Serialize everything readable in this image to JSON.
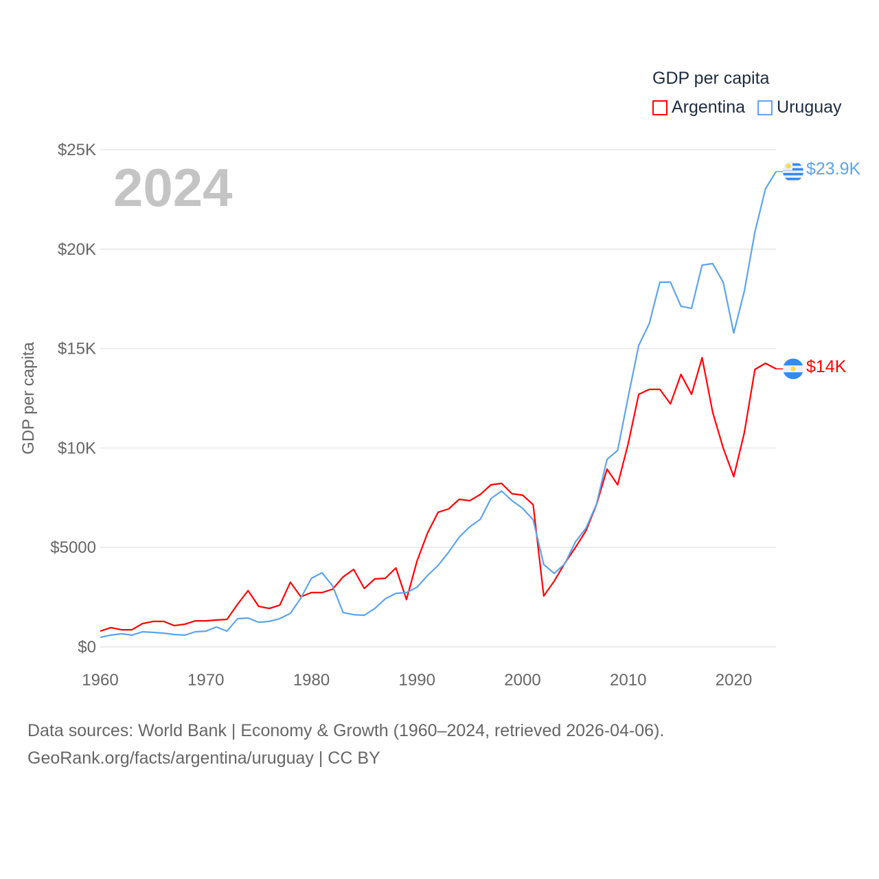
{
  "chart_data": {
    "type": "line",
    "title": "GDP per capita",
    "xlabel": "",
    "ylabel": "GDP per capita",
    "xlim": [
      1960,
      2024
    ],
    "ylim": [
      0,
      25000
    ],
    "grid": true,
    "legend_placement": "top-right",
    "year_watermark": "2024",
    "x_ticks": [
      "1960",
      "1970",
      "1980",
      "1990",
      "2000",
      "2010",
      "2020"
    ],
    "x_tick_values": [
      1960,
      1970,
      1980,
      1990,
      2000,
      2010,
      2020
    ],
    "y_ticks": [
      "$0",
      "$5000",
      "$10K",
      "$15K",
      "$20K",
      "$25K"
    ],
    "y_tick_values": [
      0,
      5000,
      10000,
      15000,
      20000,
      25000
    ],
    "x": [
      1960,
      1961,
      1962,
      1963,
      1964,
      1965,
      1966,
      1967,
      1968,
      1969,
      1970,
      1971,
      1972,
      1973,
      1974,
      1975,
      1976,
      1977,
      1978,
      1979,
      1980,
      1981,
      1982,
      1983,
      1984,
      1985,
      1986,
      1987,
      1988,
      1989,
      1990,
      1991,
      1992,
      1993,
      1994,
      1995,
      1996,
      1997,
      1998,
      1999,
      2000,
      2001,
      2002,
      2003,
      2004,
      2005,
      2006,
      2007,
      2008,
      2009,
      2010,
      2011,
      2012,
      2013,
      2014,
      2015,
      2016,
      2017,
      2018,
      2019,
      2020,
      2021,
      2022,
      2023,
      2024
    ],
    "series": [
      {
        "name": "Argentina",
        "color": "#ff0000",
        "end_label": "$14K",
        "values": [
          790,
          970,
          860,
          860,
          1170,
          1280,
          1280,
          1070,
          1140,
          1310,
          1310,
          1350,
          1380,
          2140,
          2830,
          2040,
          1930,
          2100,
          3250,
          2520,
          2730,
          2730,
          2900,
          3520,
          3900,
          2940,
          3420,
          3450,
          3970,
          2380,
          4320,
          5730,
          6770,
          6940,
          7420,
          7350,
          7670,
          8150,
          8220,
          7700,
          7630,
          7150,
          2560,
          3310,
          4210,
          5000,
          5840,
          7150,
          8940,
          8150,
          10220,
          12700,
          12950,
          12950,
          12220,
          13700,
          12700,
          14540,
          11800,
          10000,
          8560,
          10770,
          13950,
          14260,
          13980
        ]
      },
      {
        "name": "Uruguay",
        "color": "#5ba4ee",
        "end_label": "$23.9K",
        "values": [
          480,
          590,
          660,
          590,
          760,
          730,
          690,
          620,
          590,
          760,
          790,
          1000,
          790,
          1420,
          1450,
          1240,
          1280,
          1420,
          1690,
          2450,
          3450,
          3730,
          3070,
          1730,
          1620,
          1590,
          1930,
          2420,
          2690,
          2730,
          3000,
          3590,
          4100,
          4770,
          5520,
          6040,
          6420,
          7460,
          7840,
          7350,
          6970,
          6390,
          4140,
          3690,
          4180,
          5280,
          5970,
          7180,
          9430,
          9880,
          12570,
          15160,
          16260,
          18340,
          18340,
          17130,
          17020,
          19200,
          19270,
          18340,
          15780,
          17890,
          20860,
          23030,
          23900
        ]
      }
    ]
  },
  "footer": {
    "line1": "Data sources: World Bank | Economy & Growth (1960–2024, retrieved 2026-04-06).",
    "line2": "GeoRank.org/facts/argentina/uruguay | CC BY"
  }
}
